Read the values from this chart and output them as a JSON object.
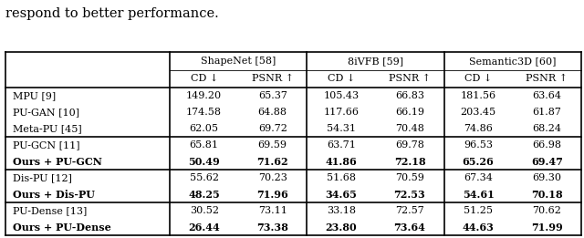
{
  "title_text": "respond to better performance.",
  "col_groups": [
    "ShapeNet [58]",
    "8iVFB [59]",
    "Semantic3D [60]"
  ],
  "sub_cols": [
    "CD ↓",
    "PSNR ↑"
  ],
  "row_labels": [
    "MPU [9]",
    "PU-GAN [10]",
    "Meta-PU [45]",
    "PU-GCN [11]",
    "Ours + PU-GCN",
    "Dis-PU [12]",
    "Ours + Dis-PU",
    "PU-Dense [13]",
    "Ours + PU-Dense"
  ],
  "bold_rows": [
    4,
    6,
    8
  ],
  "data": [
    [
      149.2,
      65.37,
      105.43,
      66.83,
      181.56,
      63.64
    ],
    [
      174.58,
      64.88,
      117.66,
      66.19,
      203.45,
      61.87
    ],
    [
      62.05,
      69.72,
      54.31,
      70.48,
      74.86,
      68.24
    ],
    [
      65.81,
      69.59,
      63.71,
      69.78,
      96.53,
      66.98
    ],
    [
      50.49,
      71.62,
      41.86,
      72.18,
      65.26,
      69.47
    ],
    [
      55.62,
      70.23,
      51.68,
      70.59,
      67.34,
      69.3
    ],
    [
      48.25,
      71.96,
      34.65,
      72.53,
      54.61,
      70.18
    ],
    [
      30.52,
      73.11,
      33.18,
      72.57,
      51.25,
      70.62
    ],
    [
      26.44,
      73.38,
      23.8,
      73.64,
      44.63,
      71.99
    ]
  ],
  "figsize": [
    6.4,
    2.61
  ],
  "dpi": 100,
  "background_color": "#ffffff",
  "text_color": "#000000",
  "thick_lw": 1.2,
  "thin_lw": 0.6
}
